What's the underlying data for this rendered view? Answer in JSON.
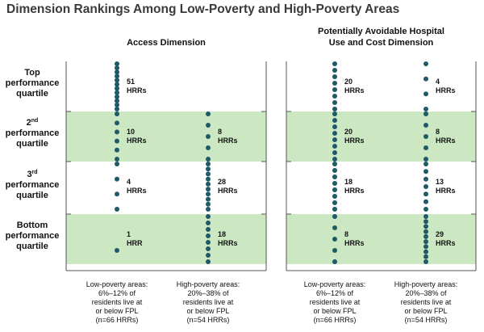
{
  "chart_data": {
    "type": "scatter",
    "title": "Dimension Rankings Among Low-Poverty and High-Poverty Areas",
    "quartiles": [
      {
        "label_lines": [
          "Top",
          "performance",
          "quartile"
        ]
      },
      {
        "label_lines": [
          "2",
          "performance",
          "quartile"
        ],
        "superscript": "nd"
      },
      {
        "label_lines": [
          "3",
          "performance",
          "quartile"
        ],
        "superscript": "rd"
      },
      {
        "label_lines": [
          "Bottom",
          "performance",
          "quartile"
        ]
      }
    ],
    "column_labels": [
      [
        "Low-poverty areas:",
        "6%–12% of",
        "residents live at",
        "or below FPL",
        "(n=66 HRRs)"
      ],
      [
        "High-poverty areas:",
        "20%–38% of",
        "residents live at",
        "or below FPL",
        "(n=54 HRRs)"
      ]
    ],
    "panels": [
      {
        "title_lines": [
          "Access Dimension"
        ],
        "series": [
          {
            "counts": [
              51,
              10,
              4,
              1
            ],
            "labels": [
              [
                "51",
                "HRRs"
              ],
              [
                "10",
                "HRRs"
              ],
              [
                "4",
                "HRRs"
              ],
              [
                "1",
                "HRR"
              ]
            ]
          },
          {
            "counts": [
              0,
              8,
              28,
              18
            ],
            "labels": [
              null,
              [
                "8",
                "HRRs"
              ],
              [
                "28",
                "HRRs"
              ],
              [
                "18",
                "HRRs"
              ]
            ]
          }
        ]
      },
      {
        "title_lines": [
          "Potentially Avoidable Hospital",
          "Use and Cost Dimension"
        ],
        "series": [
          {
            "counts": [
              20,
              20,
              18,
              8
            ],
            "labels": [
              [
                "20",
                "HRRs"
              ],
              [
                "20",
                "HRRs"
              ],
              [
                "18",
                "HRRs"
              ],
              [
                "8",
                "HRRs"
              ]
            ]
          },
          {
            "counts": [
              4,
              8,
              13,
              29
            ],
            "labels": [
              [
                "4",
                "HRRs"
              ],
              [
                "8",
                "HRRs"
              ],
              [
                "13",
                "HRRs"
              ],
              [
                "29",
                "HRRs"
              ]
            ]
          }
        ]
      }
    ],
    "colors": {
      "band": "#cce8c3",
      "dot": "#1f5a66",
      "frame": "#555555"
    }
  }
}
